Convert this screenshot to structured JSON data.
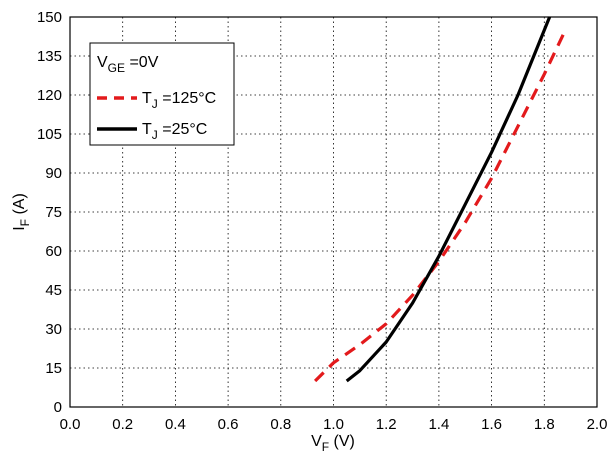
{
  "chart_data": {
    "type": "line",
    "title": "",
    "xlabel": {
      "main": "V",
      "sub": "F",
      "unit": " (V)"
    },
    "ylabel": {
      "main": "I",
      "sub": "F",
      "unit": " (A)"
    },
    "xlim": [
      0.0,
      2.0
    ],
    "ylim": [
      0,
      150
    ],
    "x_ticks": [
      "0.0",
      "0.2",
      "0.4",
      "0.6",
      "0.8",
      "1.0",
      "1.2",
      "1.4",
      "1.6",
      "1.8",
      "2.0"
    ],
    "y_ticks": [
      "0",
      "15",
      "30",
      "45",
      "60",
      "75",
      "90",
      "105",
      "120",
      "135",
      "150"
    ],
    "grid": true,
    "legend": {
      "position": "top-left",
      "condition": {
        "main": "V",
        "sub": "GE",
        "rest": " =0V"
      },
      "entries": [
        {
          "main": "T",
          "sub": "J",
          "rest": " =125°C",
          "style": "dashed",
          "color": "#e31a1c"
        },
        {
          "main": "T",
          "sub": "J",
          "rest": " =25°C",
          "style": "solid",
          "color": "#000000"
        }
      ]
    },
    "series": [
      {
        "color": "#e31a1c",
        "style": "dashed",
        "points": [
          [
            0.93,
            10
          ],
          [
            1.0,
            17
          ],
          [
            1.1,
            24
          ],
          [
            1.2,
            32
          ],
          [
            1.3,
            43
          ],
          [
            1.4,
            56
          ],
          [
            1.5,
            71
          ],
          [
            1.6,
            88
          ],
          [
            1.7,
            108
          ],
          [
            1.8,
            128
          ],
          [
            1.88,
            145
          ]
        ]
      },
      {
        "color": "#000000",
        "style": "solid",
        "points": [
          [
            1.05,
            10
          ],
          [
            1.1,
            14
          ],
          [
            1.2,
            25
          ],
          [
            1.3,
            40
          ],
          [
            1.4,
            58
          ],
          [
            1.5,
            78
          ],
          [
            1.6,
            98
          ],
          [
            1.7,
            120
          ],
          [
            1.82,
            150
          ]
        ]
      }
    ]
  }
}
